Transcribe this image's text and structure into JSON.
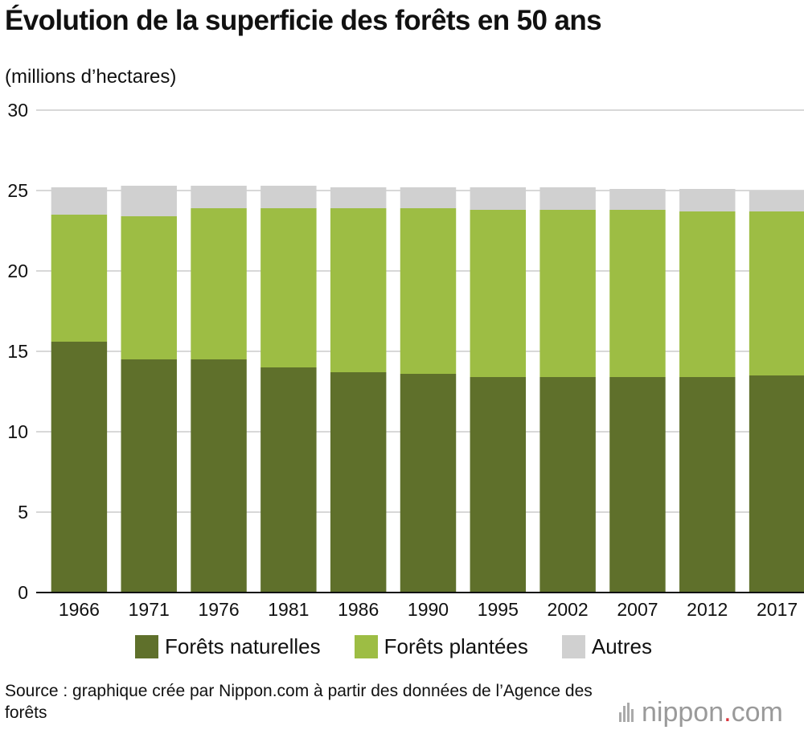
{
  "title": "Évolution de la superficie des forêts en 50 ans",
  "unit_label": "(millions d’hectares)",
  "colors": {
    "naturelles": "#5f702b",
    "plantees": "#9dbd44",
    "autres": "#d0d0d0",
    "grid": "#cccccc"
  },
  "legend": [
    {
      "label": "Forêts naturelles",
      "color": "#5f702b"
    },
    {
      "label": "Forêts plantées",
      "color": "#9dbd44"
    },
    {
      "label": "Autres",
      "color": "#d0d0d0"
    }
  ],
  "source": "Source : graphique crée par Nippon.com à partir des données de l’Agence des forêts",
  "logo": {
    "name": "nippon",
    "dot": ".",
    "suffix": "com"
  },
  "chart_data": {
    "type": "bar",
    "stacked": true,
    "categories": [
      "1966",
      "1971",
      "1976",
      "1981",
      "1986",
      "1990",
      "1995",
      "2002",
      "2007",
      "2012",
      "2017"
    ],
    "series": [
      {
        "name": "Forêts naturelles",
        "color": "#5f702b",
        "values": [
          15.6,
          14.5,
          14.5,
          14.0,
          13.7,
          13.6,
          13.4,
          13.4,
          13.4,
          13.4,
          13.5
        ]
      },
      {
        "name": "Forêts plantées",
        "color": "#9dbd44",
        "values": [
          7.9,
          8.9,
          9.4,
          9.9,
          10.2,
          10.3,
          10.4,
          10.4,
          10.4,
          10.3,
          10.2
        ]
      },
      {
        "name": "Autres",
        "color": "#d0d0d0",
        "values": [
          1.7,
          1.9,
          1.4,
          1.4,
          1.3,
          1.3,
          1.4,
          1.4,
          1.3,
          1.4,
          1.3
        ]
      }
    ],
    "y_ticks": [
      0,
      5,
      10,
      15,
      20,
      25,
      30
    ],
    "ylim": [
      0,
      30
    ],
    "grid": true,
    "legend_position": "bottom"
  }
}
